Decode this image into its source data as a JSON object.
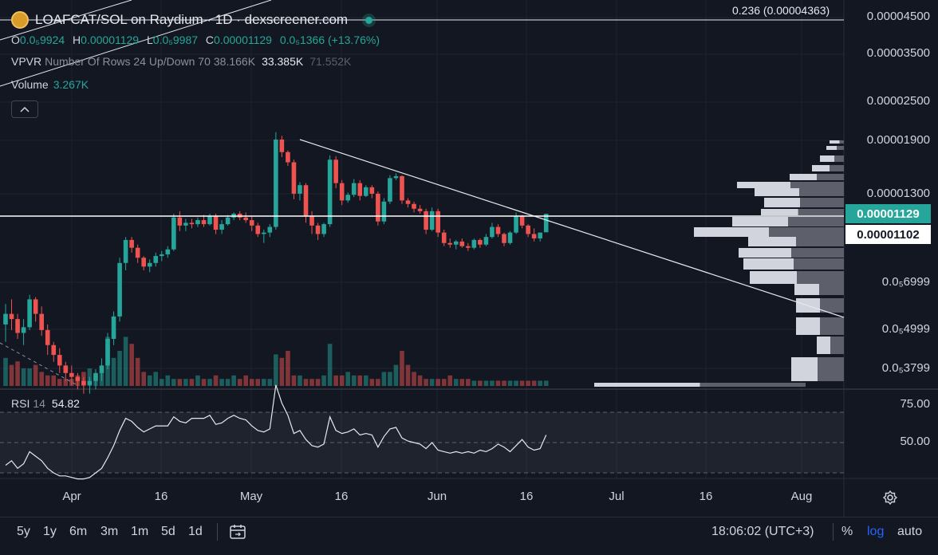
{
  "header": {
    "title": "LOAFCAT/SOL on Raydium · 1D · dexscreener.com",
    "ohlc": [
      {
        "k": "O",
        "v": "0.0₅9924"
      },
      {
        "k": "H",
        "v": "0.00001129"
      },
      {
        "k": "L",
        "v": "0.0₅9987"
      },
      {
        "k": "C",
        "v": "0.00001129"
      },
      {
        "k": "",
        "v": "0.0₅1366 (+13.76%)"
      }
    ],
    "vpvr": {
      "label": "VPVR",
      "params": "Number Of Rows 24 Up/Down 70",
      "v1": "38.166K",
      "v2": "33.385K",
      "v3": "71.552K"
    },
    "volume": {
      "label": "Volume",
      "value": "3.267K"
    },
    "collapse_icon": "chevron-up-icon",
    "fib_label": "0.236 (0.00004363)"
  },
  "rsi": {
    "label": "RSI",
    "period": "14",
    "value": "54.82"
  },
  "y_axis": {
    "price_labels": [
      "0.00004500",
      "0.00003500",
      "0.00002500",
      "0.00001900",
      "0.00001300",
      "0.0₅6999",
      "0.0₅4999",
      "0.0₅3799"
    ],
    "rsi_labels": [
      "75.00",
      "50.00"
    ],
    "current_price": "0.00001129",
    "cursor_price": "0.00001102",
    "scale": "log"
  },
  "x_axis": {
    "labels": [
      "Apr",
      "16",
      "May",
      "16",
      "Jun",
      "16",
      "Jul",
      "16",
      "Aug"
    ]
  },
  "toolbar": {
    "timeframes": [
      "5y",
      "1y",
      "6m",
      "3m",
      "1m",
      "5d",
      "1d"
    ],
    "calendar_icon": "calendar-icon",
    "clock": "18:06:02 (UTC+3)",
    "percent": "%",
    "log": "log",
    "auto": "auto",
    "settings_icon": "gear-icon"
  },
  "colors": {
    "background": "#131722",
    "up": "#26a69a",
    "down": "#ef5350",
    "text": "#d1d4dc",
    "accent": "#2962ff"
  },
  "chart_data": {
    "type": "candlestick",
    "title": "LOAFCAT/SOL on Raydium · 1D · dexscreener.com",
    "y_scale": "log",
    "x_dates": [
      "2024-03-22",
      "2024-03-23",
      "2024-03-24",
      "2024-03-25",
      "2024-03-26",
      "2024-03-27",
      "2024-03-28",
      "2024-03-29",
      "2024-03-30",
      "2024-03-31",
      "2024-04-01",
      "2024-04-02",
      "2024-04-03",
      "2024-04-04",
      "2024-04-05",
      "2024-04-06",
      "2024-04-07",
      "2024-04-08",
      "2024-04-09",
      "2024-04-10",
      "2024-04-11",
      "2024-04-12",
      "2024-04-13",
      "2024-04-14",
      "2024-04-15",
      "2024-04-16",
      "2024-04-17",
      "2024-04-18",
      "2024-04-19",
      "2024-04-20",
      "2024-04-21",
      "2024-04-22",
      "2024-04-23",
      "2024-04-24",
      "2024-04-25",
      "2024-04-26",
      "2024-04-27",
      "2024-04-28",
      "2024-04-29",
      "2024-04-30",
      "2024-05-01",
      "2024-05-02",
      "2024-05-03",
      "2024-05-04",
      "2024-05-05",
      "2024-05-06",
      "2024-05-07",
      "2024-05-08",
      "2024-05-09",
      "2024-05-10",
      "2024-05-11",
      "2024-05-12",
      "2024-05-13",
      "2024-05-14",
      "2024-05-15",
      "2024-05-16",
      "2024-05-17",
      "2024-05-18",
      "2024-05-19",
      "2024-05-20",
      "2024-05-21",
      "2024-05-22",
      "2024-05-23",
      "2024-05-24",
      "2024-05-25",
      "2024-05-26",
      "2024-05-27",
      "2024-05-28",
      "2024-05-29",
      "2024-05-30",
      "2024-05-31",
      "2024-06-01",
      "2024-06-02",
      "2024-06-03",
      "2024-06-04",
      "2024-06-05",
      "2024-06-06",
      "2024-06-07",
      "2024-06-08",
      "2024-06-09",
      "2024-06-10",
      "2024-06-11",
      "2024-06-12",
      "2024-06-13",
      "2024-06-14",
      "2024-06-15",
      "2024-06-16",
      "2024-06-17",
      "2024-06-18",
      "2024-06-19",
      "2024-06-20"
    ],
    "ohlc": [
      [
        5.2e-06,
        6e-06,
        4.6e-06,
        5.6e-06
      ],
      [
        5.6e-06,
        6.2e-06,
        5e-06,
        5.4e-06
      ],
      [
        5.4e-06,
        5.6e-06,
        4.7e-06,
        4.9e-06
      ],
      [
        4.9e-06,
        5.4e-06,
        4.5e-06,
        5.1e-06
      ],
      [
        5.1e-06,
        6.4e-06,
        5e-06,
        6.2e-06
      ],
      [
        6.2e-06,
        6.3e-06,
        5.3e-06,
        5.6e-06
      ],
      [
        5.6e-06,
        5.9e-06,
        4.8e-06,
        5e-06
      ],
      [
        5e-06,
        5.2e-06,
        4.2e-06,
        4.5e-06
      ],
      [
        4.5e-06,
        4.6e-06,
        4e-06,
        4.2e-06
      ],
      [
        4.2e-06,
        4.4e-06,
        3.7e-06,
        3.9e-06
      ],
      [
        3.9e-06,
        4e-06,
        3.5e-06,
        3.7e-06
      ],
      [
        3.7e-06,
        3.9e-06,
        3.4e-06,
        3.6e-06
      ],
      [
        3.6e-06,
        3.7e-06,
        3.3e-06,
        3.5e-06
      ],
      [
        3.5e-06,
        3.6e-06,
        3.2e-06,
        3.4e-06
      ],
      [
        3.4e-06,
        3.6e-06,
        3.2e-06,
        3.5e-06
      ],
      [
        3.5e-06,
        3.8e-06,
        3.3e-06,
        3.7e-06
      ],
      [
        3.7e-06,
        4.1e-06,
        3.5e-06,
        3.9e-06
      ],
      [
        3.9e-06,
        4.9e-06,
        3.8e-06,
        4.7e-06
      ],
      [
        4.7e-06,
        5.7e-06,
        4.5e-06,
        5.5e-06
      ],
      [
        5.5e-06,
        8.3e-06,
        5.3e-06,
        8e-06
      ],
      [
        8e-06,
        9.6e-06,
        7.6e-06,
        9.4e-06
      ],
      [
        9.4e-06,
        9.6e-06,
        8.6e-06,
        8.9e-06
      ],
      [
        8.9e-06,
        9.1e-06,
        8e-06,
        8.3e-06
      ],
      [
        8.3e-06,
        8.4e-06,
        7.6e-06,
        7.8e-06
      ],
      [
        7.8e-06,
        8.2e-06,
        7.5e-06,
        8e-06
      ],
      [
        8e-06,
        8.6e-06,
        7.8e-06,
        8.4e-06
      ],
      [
        8.4e-06,
        8.7e-06,
        8.1e-06,
        8.5e-06
      ],
      [
        8.5e-06,
        9e-06,
        8.3e-06,
        8.8e-06
      ],
      [
        8.8e-06,
        1.13e-05,
        8.7e-06,
        1.1e-05
      ],
      [
        1.1e-05,
        1.15e-05,
        1e-05,
        1.04e-05
      ],
      [
        1.04e-05,
        1.09e-05,
        1e-05,
        1.06e-05
      ],
      [
        1.06e-05,
        1.09e-05,
        1.02e-05,
        1.05e-05
      ],
      [
        1.05e-05,
        1.1e-05,
        1.03e-05,
        1.08e-05
      ],
      [
        1.08e-05,
        1.12e-05,
        1.03e-05,
        1.05e-05
      ],
      [
        1.05e-05,
        1.13e-05,
        1.04e-05,
        1.11e-05
      ],
      [
        1.11e-05,
        1.13e-05,
        9.8e-06,
        1.01e-05
      ],
      [
        1.01e-05,
        1.08e-05,
        9.8e-06,
        1.05e-05
      ],
      [
        1.05e-05,
        1.12e-05,
        1.04e-05,
        1.1e-05
      ],
      [
        1.1e-05,
        1.14e-05,
        1.08e-05,
        1.13e-05
      ],
      [
        1.13e-05,
        1.15e-05,
        1.08e-05,
        1.1e-05
      ],
      [
        1.1e-05,
        1.14e-05,
        1.06e-05,
        1.08e-05
      ],
      [
        1.08e-05,
        1.11e-05,
        1e-05,
        1.04e-05
      ],
      [
        1.04e-05,
        1.06e-05,
        9.6e-06,
        9.8e-06
      ],
      [
        9.8e-06,
        1.01e-05,
        9.2e-06,
        9.9e-06
      ],
      [
        9.9e-06,
        1.05e-05,
        9.6e-06,
        1.03e-05
      ],
      [
        1.03e-05,
        2e-05,
        1.01e-05,
        1.9e-05
      ],
      [
        1.9e-05,
        1.95e-05,
        1.68e-05,
        1.74e-05
      ],
      [
        1.74e-05,
        1.76e-05,
        1.58e-05,
        1.62e-05
      ],
      [
        1.62e-05,
        1.65e-05,
        1.25e-05,
        1.3e-05
      ],
      [
        1.3e-05,
        1.41e-05,
        1.24e-05,
        1.38e-05
      ],
      [
        1.38e-05,
        1.4e-05,
        1.06e-05,
        1.11e-05
      ],
      [
        1.11e-05,
        1.15e-05,
        9.8e-06,
        1.04e-05
      ],
      [
        1.04e-05,
        1.06e-05,
        9.4e-06,
        9.8e-06
      ],
      [
        9.8e-06,
        1.06e-05,
        9.6e-06,
        1.05e-05
      ],
      [
        1.05e-05,
        1.7e-05,
        1.03e-05,
        1.65e-05
      ],
      [
        1.65e-05,
        1.69e-05,
        1.35e-05,
        1.4e-05
      ],
      [
        1.4e-05,
        1.43e-05,
        1.2e-05,
        1.24e-05
      ],
      [
        1.24e-05,
        1.31e-05,
        1.22e-05,
        1.29e-05
      ],
      [
        1.29e-05,
        1.44e-05,
        1.27e-05,
        1.4e-05
      ],
      [
        1.4e-05,
        1.43e-05,
        1.24e-05,
        1.28e-05
      ],
      [
        1.28e-05,
        1.38e-05,
        1.27e-05,
        1.36e-05
      ],
      [
        1.36e-05,
        1.38e-05,
        1.26e-05,
        1.3e-05
      ],
      [
        1.3e-05,
        1.32e-05,
        1.04e-05,
        1.07e-05
      ],
      [
        1.07e-05,
        1.26e-05,
        1.05e-05,
        1.23e-05
      ],
      [
        1.23e-05,
        1.48e-05,
        1.21e-05,
        1.45e-05
      ],
      [
        1.45e-05,
        1.5e-05,
        1.43e-05,
        1.47e-05
      ],
      [
        1.47e-05,
        1.48e-05,
        1.21e-05,
        1.24e-05
      ],
      [
        1.24e-05,
        1.26e-05,
        1.18e-05,
        1.21e-05
      ],
      [
        1.21e-05,
        1.23e-05,
        1.14e-05,
        1.17e-05
      ],
      [
        1.17e-05,
        1.2e-05,
        1.13e-05,
        1.15e-05
      ],
      [
        1.15e-05,
        1.17e-05,
        9.8e-06,
        1.01e-05
      ],
      [
        1.01e-05,
        1.18e-05,
        1e-05,
        1.15e-05
      ],
      [
        1.15e-05,
        1.17e-05,
        9.6e-06,
        9.9e-06
      ],
      [
        9.9e-06,
        1.01e-05,
        9e-06,
        9.2e-06
      ],
      [
        9.2e-06,
        9.5e-06,
        8.9e-06,
        9.1e-06
      ],
      [
        9.1e-06,
        9.4e-06,
        8.8e-06,
        9.3e-06
      ],
      [
        9.3e-06,
        9.5e-06,
        8.9e-06,
        9e-06
      ],
      [
        9e-06,
        9.2e-06,
        8.7e-06,
        8.9e-06
      ],
      [
        8.9e-06,
        9.5e-06,
        8.8e-06,
        9.4e-06
      ],
      [
        9.4e-06,
        9.5e-06,
        8.9e-06,
        9.1e-06
      ],
      [
        9.1e-06,
        9.8e-06,
        9e-06,
        9.6e-06
      ],
      [
        9.6e-06,
        1.06e-05,
        9.5e-06,
        1.03e-05
      ],
      [
        1.03e-05,
        1.05e-05,
        9.6e-06,
        9.8e-06
      ],
      [
        9.8e-06,
        9.9e-06,
        9e-06,
        9.2e-06
      ],
      [
        9.2e-06,
        1e-05,
        9.1e-06,
        9.9e-06
      ],
      [
        9.9e-06,
        1.14e-05,
        9.8e-06,
        1.11e-05
      ],
      [
        1.11e-05,
        1.12e-05,
        1.02e-05,
        1.04e-05
      ],
      [
        1.04e-05,
        1.05e-05,
        9.6e-06,
        9.8e-06
      ],
      [
        9.8e-06,
        1.02e-05,
        9.3e-06,
        9.5e-06
      ],
      [
        9.5e-06,
        9.9e-06,
        9.3e-06,
        9.9e-06
      ],
      [
        9.92e-06,
        1.129e-05,
        9.98e-06,
        1.129e-05
      ]
    ],
    "volume": [
      8,
      6,
      7,
      5,
      5,
      6,
      4,
      3,
      3,
      2,
      2,
      2,
      3,
      4,
      5,
      3,
      4,
      14,
      8,
      10,
      14,
      12,
      8,
      4,
      3,
      4,
      2,
      3,
      2,
      2,
      2,
      2,
      3,
      2,
      2,
      3,
      2,
      2,
      3,
      2,
      3,
      2,
      2,
      2,
      2,
      9,
      8,
      10,
      3,
      3,
      2,
      2,
      2,
      3,
      12,
      3,
      3,
      4,
      3,
      3,
      3,
      2,
      2,
      4,
      4,
      6,
      10,
      6,
      4,
      3,
      2,
      2,
      2,
      2,
      3,
      2,
      2,
      2,
      1.5,
      1.5,
      1.5,
      1.5,
      1.5,
      1.5,
      1.5,
      1.5,
      1.5,
      1.5,
      1.5,
      1.5,
      1.5
    ],
    "rsi": [
      35,
      38,
      33,
      36,
      44,
      41,
      38,
      33,
      30,
      28,
      28,
      27,
      26,
      26,
      27,
      30,
      33,
      40,
      48,
      58,
      66,
      64,
      60,
      57,
      59,
      61,
      61,
      61,
      67,
      64,
      63,
      66,
      66,
      66,
      68,
      62,
      63,
      66,
      68,
      66,
      65,
      61,
      58,
      57,
      59,
      88,
      76,
      68,
      56,
      58,
      52,
      48,
      47,
      49,
      67,
      58,
      56,
      57,
      59,
      55,
      56,
      55,
      47,
      54,
      59,
      60,
      53,
      51,
      50,
      49,
      46,
      50,
      45,
      44,
      43,
      44,
      43,
      44,
      43,
      45,
      44,
      46,
      49,
      47,
      44,
      48,
      52,
      47,
      45,
      46,
      55
    ],
    "rsi_levels": [
      70,
      50,
      30
    ],
    "current_price": 1.129e-05,
    "fib_level": {
      "ratio": 0.236,
      "price": 4.363e-05
    }
  }
}
